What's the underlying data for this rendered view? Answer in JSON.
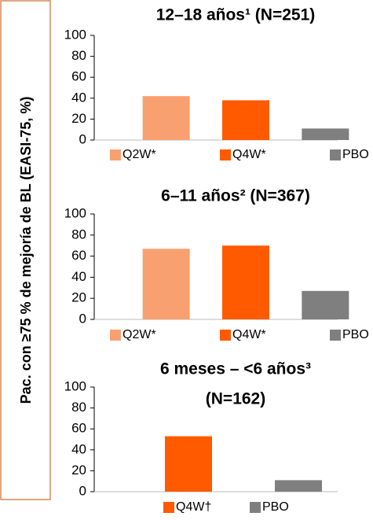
{
  "ylabel": "Pac. con ≥75 % de mejoría de BL (EASI-75, %)",
  "chart_data": [
    {
      "type": "bar",
      "title": "12–18 años¹ (N=251)",
      "categories": [
        "Q2W*",
        "Q4W*",
        "PBO"
      ],
      "values": [
        42,
        38,
        11
      ],
      "colors": [
        "#f9a070",
        "#ff5a00",
        "#7f7f7f"
      ],
      "ylim": [
        0,
        100
      ],
      "yticks": [
        0,
        20,
        40,
        60,
        80,
        100
      ]
    },
    {
      "type": "bar",
      "title": "6–11 años² (N=367)",
      "categories": [
        "Q2W*",
        "Q4W*",
        "PBO"
      ],
      "values": [
        67,
        70,
        27
      ],
      "colors": [
        "#f9a070",
        "#ff5a00",
        "#7f7f7f"
      ],
      "ylim": [
        0,
        100
      ],
      "yticks": [
        0,
        20,
        40,
        60,
        80,
        100
      ]
    },
    {
      "type": "bar",
      "title": [
        "6 meses – <6 años³",
        "(N=162)"
      ],
      "categories": [
        "Q4W†",
        "PBO"
      ],
      "values": [
        53,
        11
      ],
      "colors": [
        "#ff5a00",
        "#7f7f7f"
      ],
      "ylim": [
        0,
        100
      ],
      "yticks": [
        0,
        20,
        40,
        60,
        80,
        100
      ]
    }
  ]
}
